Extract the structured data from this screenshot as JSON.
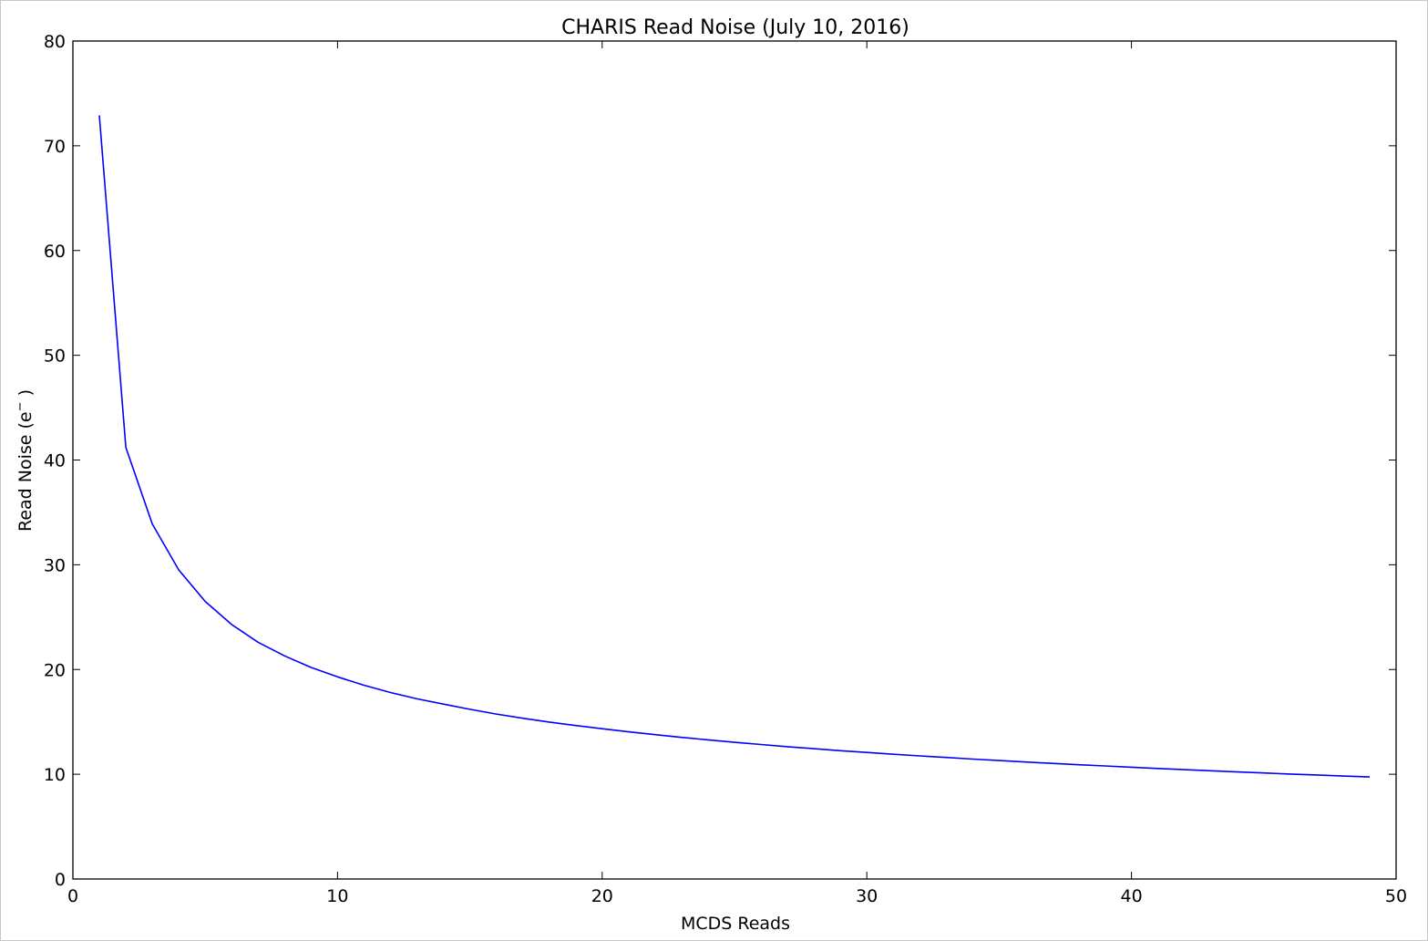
{
  "chart_data": {
    "type": "line",
    "title": "CHARIS Read Noise (July 10, 2016)",
    "xlabel": "MCDS Reads",
    "ylabel_main": "Read Noise (e",
    "ylabel_sup": "−",
    "ylabel_tail": " )",
    "xlim": [
      0,
      50
    ],
    "ylim": [
      0,
      80
    ],
    "xticks": [
      0,
      10,
      20,
      30,
      40,
      50
    ],
    "yticks": [
      0,
      10,
      20,
      30,
      40,
      50,
      60,
      70,
      80
    ],
    "grid": false,
    "line_color": "#0000ff",
    "series": [
      {
        "x": [
          1,
          2,
          3,
          4,
          5,
          6,
          7,
          8,
          9,
          10,
          11,
          12,
          13,
          14,
          15,
          16,
          17,
          18,
          19,
          20,
          21,
          22,
          23,
          24,
          25,
          26,
          27,
          28,
          29,
          30,
          31,
          32,
          33,
          34,
          35,
          36,
          37,
          38,
          39,
          40,
          41,
          42,
          43,
          44,
          45,
          46,
          47,
          48,
          49
        ],
        "values": [
          72.9,
          41.2,
          33.9,
          29.5,
          26.5,
          24.3,
          22.6,
          21.3,
          20.2,
          19.3,
          18.5,
          17.8,
          17.2,
          16.7,
          16.2,
          15.75,
          15.35,
          14.98,
          14.65,
          14.35,
          14.05,
          13.78,
          13.52,
          13.28,
          13.05,
          12.84,
          12.63,
          12.44,
          12.25,
          12.08,
          11.91,
          11.75,
          11.6,
          11.45,
          11.31,
          11.17,
          11.04,
          10.91,
          10.79,
          10.67,
          10.55,
          10.44,
          10.33,
          10.22,
          10.12,
          10.02,
          9.93,
          9.83,
          9.74
        ]
      }
    ]
  }
}
